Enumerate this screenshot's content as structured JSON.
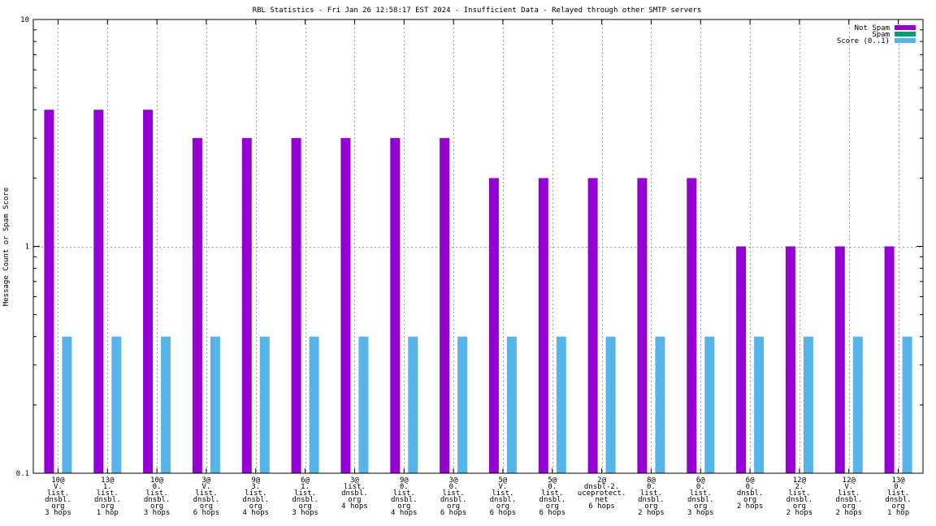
{
  "chart_data": {
    "type": "bar",
    "title": "RBL Statistics - Fri Jan 26 12:58:17 EST 2024 - Insufficient Data - Relayed through other SMTP servers",
    "xlabel": "",
    "ylabel": "Message Count or Spam Score",
    "yscale": "log",
    "ylim": [
      0.1,
      10
    ],
    "yticks": [
      {
        "value": 0.1,
        "label": "0.1"
      },
      {
        "value": 1,
        "label": "1"
      },
      {
        "value": 10,
        "label": "10"
      }
    ],
    "grid": true,
    "legend_position": "top-right",
    "categories": [
      [
        "10@",
        "V.",
        "list.",
        "dnsbl.",
        "org",
        "3 hops"
      ],
      [
        "13@",
        "1.",
        "list.",
        "dnsbl.",
        "org",
        "1 hop"
      ],
      [
        "10@",
        "0.",
        "list.",
        "dnsbl.",
        "org",
        "3 hops"
      ],
      [
        "3@",
        "V.",
        "list.",
        "dnsbl.",
        "org",
        "6 hops"
      ],
      [
        "9@",
        "3.",
        "list.",
        "dnsbl.",
        "org",
        "4 hops"
      ],
      [
        "6@",
        "1.",
        "list.",
        "dnsbl.",
        "org",
        "3 hops"
      ],
      [
        "3@",
        "list.",
        "dnsbl.",
        "org",
        "4 hops"
      ],
      [
        "9@",
        "0.",
        "list.",
        "dnsbl.",
        "org",
        "4 hops"
      ],
      [
        "3@",
        "0.",
        "list.",
        "dnsbl.",
        "org",
        "6 hops"
      ],
      [
        "5@",
        "V.",
        "list.",
        "dnsbl.",
        "org",
        "6 hops"
      ],
      [
        "5@",
        "0.",
        "list.",
        "dnsbl.",
        "org",
        "6 hops"
      ],
      [
        "2@",
        "dnsbl-2.",
        "uceprotect.",
        "net",
        "6 hops"
      ],
      [
        "8@",
        "0.",
        "list.",
        "dnsbl.",
        "org",
        "2 hops"
      ],
      [
        "6@",
        "0.",
        "list.",
        "dnsbl.",
        "org",
        "3 hops"
      ],
      [
        "6@",
        "0.",
        "dnsbl.",
        "org",
        "2 hops"
      ],
      [
        "12@",
        "2.",
        "list.",
        "dnsbl.",
        "org",
        "2 hops"
      ],
      [
        "12@",
        "V.",
        "list.",
        "dnsbl.",
        "org",
        "2 hops"
      ],
      [
        "13@",
        "0.",
        "list.",
        "dnsbl.",
        "org",
        "1 hop"
      ]
    ],
    "series": [
      {
        "name": "Not Spam",
        "color": "#9400d3",
        "values": [
          4,
          4,
          4,
          3,
          3,
          3,
          3,
          3,
          3,
          2,
          2,
          2,
          2,
          2,
          1,
          1,
          1,
          1
        ]
      },
      {
        "name": "Spam",
        "color": "#009e73",
        "values": [
          0,
          0,
          0,
          0,
          0,
          0,
          0,
          0,
          0,
          0,
          0,
          0,
          0,
          0,
          0,
          0,
          0,
          0
        ]
      },
      {
        "name": "Score (0..1)",
        "color": "#56b4e9",
        "values": [
          0.4,
          0.4,
          0.4,
          0.4,
          0.4,
          0.4,
          0.4,
          0.4,
          0.4,
          0.4,
          0.4,
          0.4,
          0.4,
          0.4,
          0.4,
          0.4,
          0.4,
          0.4
        ]
      }
    ]
  }
}
